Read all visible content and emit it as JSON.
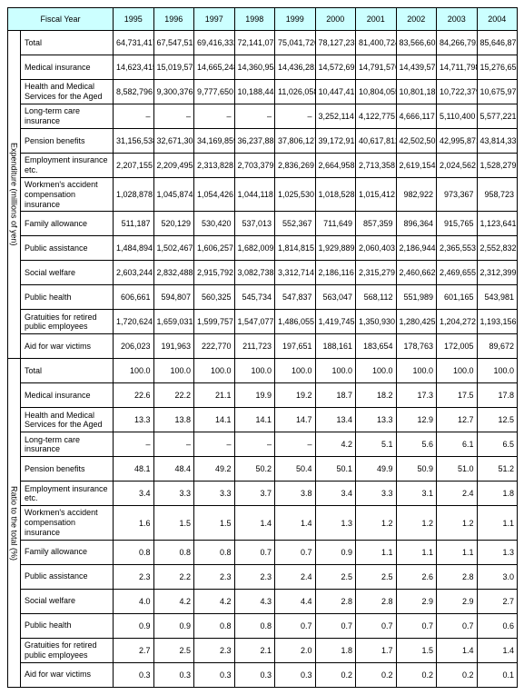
{
  "colors": {
    "header_bg": "#ccffff",
    "border": "#000000",
    "bg": "#ffffff",
    "text": "#000000"
  },
  "fiscal_year_label": "Fiscal Year",
  "years": [
    "1995",
    "1996",
    "1997",
    "1998",
    "1999",
    "2000",
    "2001",
    "2002",
    "2003",
    "2004"
  ],
  "section1_label": "Expenditure (millions of yen)",
  "section2_label": "Ratio to the total (%)",
  "row_labels": [
    "Total",
    "Medical insurance",
    "Health and Medical Services for the Aged",
    "Long-term care insurance",
    "Pension benefits",
    "Employment insurance etc.",
    "Workmen's accident compensation insurance",
    "Family allowance",
    "Public assistance",
    "Social welfare",
    "Public health",
    "Gratuities for retired public employees",
    "Aid for war victims"
  ],
  "expenditure": [
    [
      "64,731,417",
      "67,547,515",
      "69,416,332",
      "72,141,071",
      "75,041,726",
      "78,127,238",
      "81,400,724",
      "83,566,605",
      "84,266,791",
      "85,646,871"
    ],
    [
      "14,623,415",
      "15,019,579",
      "14,665,248",
      "14,360,954",
      "14,436,281",
      "14,572,699",
      "14,791,576",
      "14,439,575",
      "14,711,798",
      "15,276,653"
    ],
    [
      "8,582,796",
      "9,300,376",
      "9,777,650",
      "10,188,446",
      "11,026,058",
      "10,447,419",
      "10,804,055",
      "10,801,187",
      "10,722,379",
      "10,675,977"
    ],
    [
      "–",
      "–",
      "–",
      "–",
      "–",
      "3,252,114",
      "4,122,775",
      "4,666,117",
      "5,110,400",
      "5,577,221"
    ],
    [
      "31,156,538",
      "32,671,304",
      "34,169,859",
      "36,237,881",
      "37,806,127",
      "39,172,913",
      "40,617,812",
      "42,502,502",
      "42,995,871",
      "43,814,337"
    ],
    [
      "2,207,155",
      "2,209,495",
      "2,313,828",
      "2,703,379",
      "2,836,269",
      "2,664,958",
      "2,713,358",
      "2,619,154",
      "2,024,562",
      "1,528,279"
    ],
    [
      "1,028,878",
      "1,045,874",
      "1,054,426",
      "1,044,118",
      "1,025,530",
      "1,018,528",
      "1,015,412",
      "982,922",
      "973,367",
      "958,723"
    ],
    [
      "511,187",
      "520,129",
      "530,420",
      "537,013",
      "552,367",
      "711,649",
      "857,359",
      "896,364",
      "915,765",
      "1,123,641"
    ],
    [
      "1,484,894",
      "1,502,467",
      "1,606,257",
      "1,682,009",
      "1,814,815",
      "1,929,889",
      "2,060,403",
      "2,186,944",
      "2,365,553",
      "2,552,832"
    ],
    [
      "2,603,244",
      "2,832,488",
      "2,915,792",
      "3,082,738",
      "3,312,714",
      "2,186,116",
      "2,315,279",
      "2,460,662",
      "2,469,655",
      "2,312,399"
    ],
    [
      "606,661",
      "594,807",
      "560,325",
      "545,734",
      "547,837",
      "563,047",
      "568,112",
      "551,989",
      "601,165",
      "543,981"
    ],
    [
      "1,720,624",
      "1,659,031",
      "1,599,757",
      "1,547,077",
      "1,486,055",
      "1,419,745",
      "1,350,930",
      "1,280,425",
      "1,204,272",
      "1,193,156"
    ],
    [
      "206,023",
      "191,963",
      "222,770",
      "211,723",
      "197,651",
      "188,161",
      "183,654",
      "178,763",
      "172,005",
      "89,672"
    ]
  ],
  "ratio": [
    [
      "100.0",
      "100.0",
      "100.0",
      "100.0",
      "100.0",
      "100.0",
      "100.0",
      "100.0",
      "100.0",
      "100.0"
    ],
    [
      "22.6",
      "22.2",
      "21.1",
      "19.9",
      "19.2",
      "18.7",
      "18.2",
      "17.3",
      "17.5",
      "17.8"
    ],
    [
      "13.3",
      "13.8",
      "14.1",
      "14.1",
      "14.7",
      "13.4",
      "13.3",
      "12.9",
      "12.7",
      "12.5"
    ],
    [
      "–",
      "–",
      "–",
      "–",
      "–",
      "4.2",
      "5.1",
      "5.6",
      "6.1",
      "6.5"
    ],
    [
      "48.1",
      "48.4",
      "49.2",
      "50.2",
      "50.4",
      "50.1",
      "49.9",
      "50.9",
      "51.0",
      "51.2"
    ],
    [
      "3.4",
      "3.3",
      "3.3",
      "3.7",
      "3.8",
      "3.4",
      "3.3",
      "3.1",
      "2.4",
      "1.8"
    ],
    [
      "1.6",
      "1.5",
      "1.5",
      "1.4",
      "1.4",
      "1.3",
      "1.2",
      "1.2",
      "1.2",
      "1.1"
    ],
    [
      "0.8",
      "0.8",
      "0.8",
      "0.7",
      "0.7",
      "0.9",
      "1.1",
      "1.1",
      "1.1",
      "1.3"
    ],
    [
      "2.3",
      "2.2",
      "2.3",
      "2.3",
      "2.4",
      "2.5",
      "2.5",
      "2.6",
      "2.8",
      "3.0"
    ],
    [
      "4.0",
      "4.2",
      "4.2",
      "4.3",
      "4.4",
      "2.8",
      "2.8",
      "2.9",
      "2.9",
      "2.7"
    ],
    [
      "0.9",
      "0.9",
      "0.8",
      "0.8",
      "0.7",
      "0.7",
      "0.7",
      "0.7",
      "0.7",
      "0.6"
    ],
    [
      "2.7",
      "2.5",
      "2.3",
      "2.1",
      "2.0",
      "1.8",
      "1.7",
      "1.5",
      "1.4",
      "1.4"
    ],
    [
      "0.3",
      "0.3",
      "0.3",
      "0.3",
      "0.3",
      "0.2",
      "0.2",
      "0.2",
      "0.2",
      "0.1"
    ]
  ]
}
